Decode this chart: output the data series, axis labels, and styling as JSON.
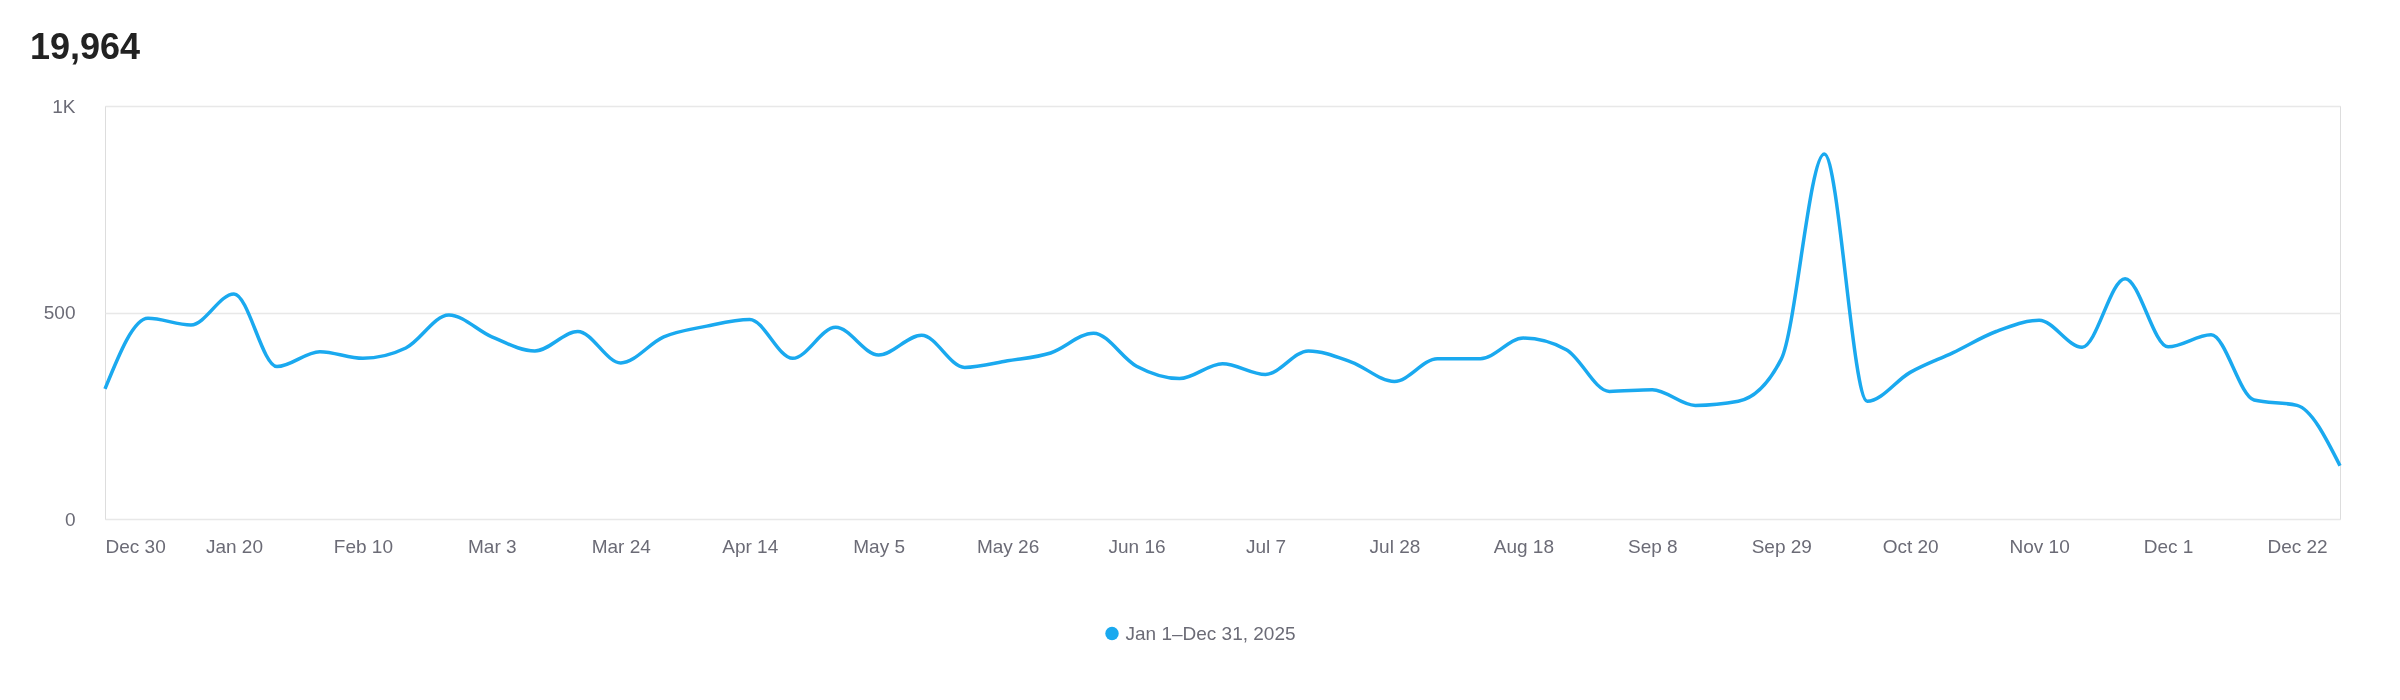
{
  "chart_data": {
    "type": "line",
    "title": "19,964",
    "x": [
      "2024-12-30",
      "2025-01-06",
      "2025-01-13",
      "2025-01-20",
      "2025-01-27",
      "2025-02-03",
      "2025-02-10",
      "2025-02-17",
      "2025-02-24",
      "2025-03-03",
      "2025-03-10",
      "2025-03-17",
      "2025-03-24",
      "2025-03-31",
      "2025-04-07",
      "2025-04-14",
      "2025-04-21",
      "2025-04-28",
      "2025-05-05",
      "2025-05-12",
      "2025-05-19",
      "2025-05-26",
      "2025-06-02",
      "2025-06-09",
      "2025-06-16",
      "2025-06-23",
      "2025-06-30",
      "2025-07-07",
      "2025-07-14",
      "2025-07-21",
      "2025-07-28",
      "2025-08-04",
      "2025-08-11",
      "2025-08-18",
      "2025-08-25",
      "2025-09-01",
      "2025-09-08",
      "2025-09-15",
      "2025-09-22",
      "2025-09-29",
      "2025-10-06",
      "2025-10-13",
      "2025-10-20",
      "2025-10-27",
      "2025-11-03",
      "2025-11-10",
      "2025-11-17",
      "2025-11-24",
      "2025-12-01",
      "2025-12-08",
      "2025-12-15",
      "2025-12-22",
      "2025-12-29"
    ],
    "series": [
      {
        "name": "Jan 1–Dec 31, 2025",
        "color": "#1aa9ef",
        "values": [
          315,
          486,
          470,
          545,
          369,
          405,
          389,
          414,
          494,
          441,
          407,
          454,
          378,
          441,
          467,
          483,
          389,
          464,
          397,
          445,
          367,
          383,
          402,
          450,
          370,
          340,
          376,
          350,
          407,
          380,
          333,
          388,
          388,
          438,
          410,
          309,
          313,
          275,
          285,
          387,
          884,
          285,
          355,
          403,
          454,
          481,
          416,
          582,
          417,
          446,
          288,
          275,
          129
        ]
      }
    ],
    "xlim": [
      "2024-12-30",
      "2025-12-29"
    ],
    "xticks": [
      {
        "value": "2024-12-30",
        "label": "Dec 30"
      },
      {
        "value": "2025-01-20",
        "label": "Jan 20"
      },
      {
        "value": "2025-02-10",
        "label": "Feb 10"
      },
      {
        "value": "2025-03-03",
        "label": "Mar 3"
      },
      {
        "value": "2025-03-24",
        "label": "Mar 24"
      },
      {
        "value": "2025-04-14",
        "label": "Apr 14"
      },
      {
        "value": "2025-05-05",
        "label": "May 5"
      },
      {
        "value": "2025-05-26",
        "label": "May 26"
      },
      {
        "value": "2025-06-16",
        "label": "Jun 16"
      },
      {
        "value": "2025-07-07",
        "label": "Jul 7"
      },
      {
        "value": "2025-07-28",
        "label": "Jul 28"
      },
      {
        "value": "2025-08-18",
        "label": "Aug 18"
      },
      {
        "value": "2025-09-08",
        "label": "Sep 8"
      },
      {
        "value": "2025-09-29",
        "label": "Sep 29"
      },
      {
        "value": "2025-10-20",
        "label": "Oct 20"
      },
      {
        "value": "2025-11-10",
        "label": "Nov 10"
      },
      {
        "value": "2025-12-01",
        "label": "Dec 1"
      },
      {
        "value": "2025-12-22",
        "label": "Dec 22"
      }
    ],
    "ylim": [
      0,
      1000
    ],
    "yticks": [
      0,
      500,
      {
        "value": 1000,
        "label": "1K"
      }
    ],
    "grid": "y",
    "legend": "bottom",
    "marker": "none",
    "line_style": "solid"
  }
}
